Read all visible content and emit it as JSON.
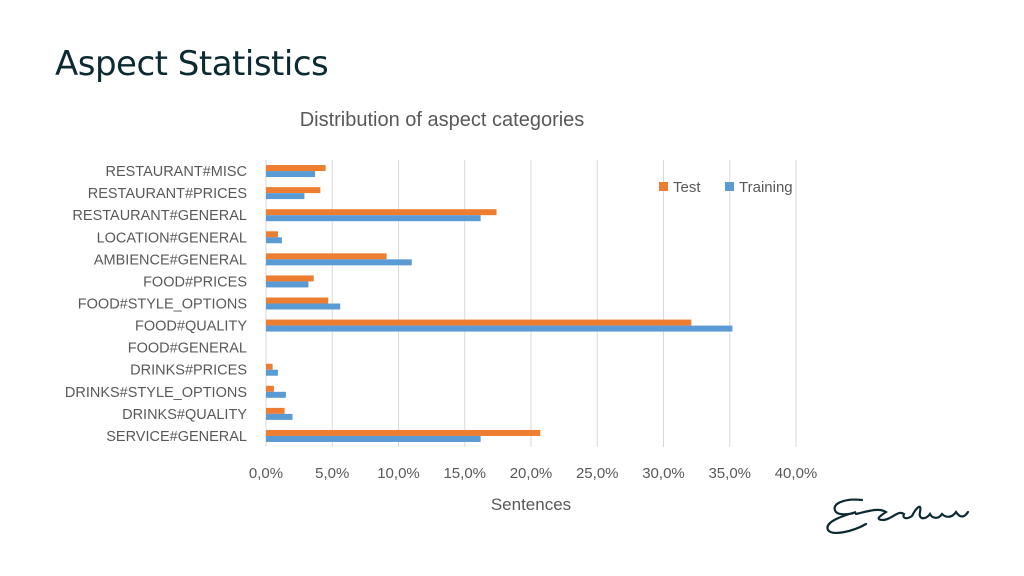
{
  "slide": {
    "title": "Aspect Statistics"
  },
  "colors": {
    "test": "#ED7D31",
    "training": "#5B9BD5",
    "grid": "#d9d9d9",
    "text": "#595959"
  },
  "chart_data": {
    "type": "bar",
    "orientation": "horizontal",
    "title": "Distribution of aspect categories",
    "xlabel": "Sentences",
    "ylabel": "",
    "xlim": [
      0,
      40
    ],
    "ticks": [
      "0,0%",
      "5,0%",
      "10,0%",
      "15,0%",
      "20,0%",
      "25,0%",
      "30,0%",
      "35,0%",
      "40,0%"
    ],
    "tick_values": [
      0,
      5,
      10,
      15,
      20,
      25,
      30,
      35,
      40
    ],
    "grid": true,
    "legend_position": "top-right",
    "categories": [
      "RESTAURANT#MISC",
      "RESTAURANT#PRICES",
      "RESTAURANT#GENERAL",
      "LOCATION#GENERAL",
      "AMBIENCE#GENERAL",
      "FOOD#PRICES",
      "FOOD#STYLE_OPTIONS",
      "FOOD#QUALITY",
      "FOOD#GENERAL",
      "DRINKS#PRICES",
      "DRINKS#STYLE_OPTIONS",
      "DRINKS#QUALITY",
      "SERVICE#GENERAL"
    ],
    "series": [
      {
        "name": "Test",
        "values": [
          4.5,
          4.1,
          17.4,
          0.9,
          9.1,
          3.6,
          4.7,
          32.1,
          0.0,
          0.5,
          0.6,
          1.4,
          20.7
        ]
      },
      {
        "name": "Training",
        "values": [
          3.7,
          2.9,
          16.2,
          1.2,
          11.0,
          3.2,
          5.6,
          35.2,
          0.0,
          0.9,
          1.5,
          2.0,
          16.2
        ]
      }
    ]
  }
}
